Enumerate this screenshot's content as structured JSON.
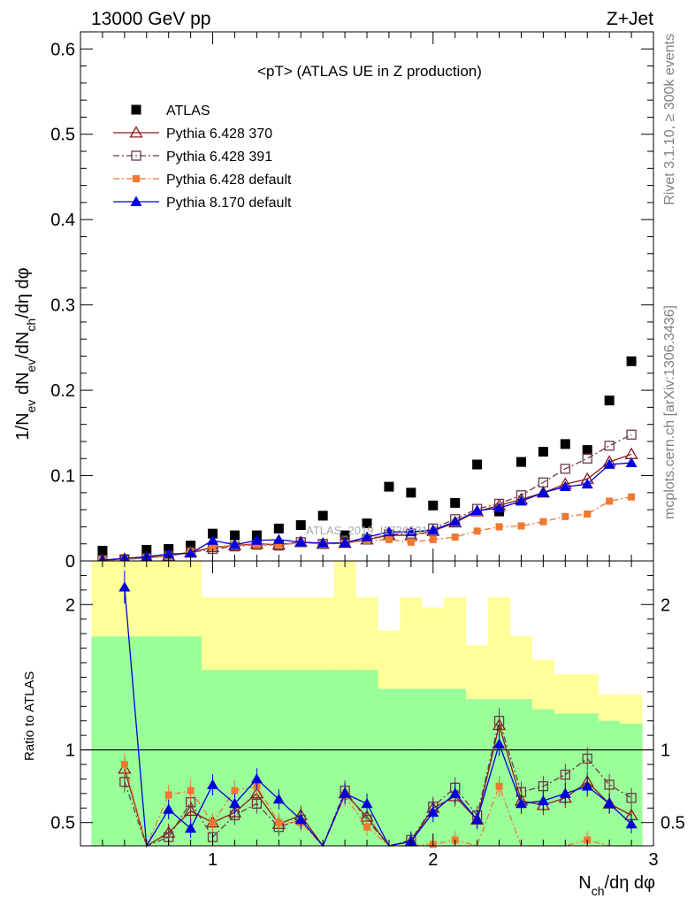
{
  "header": {
    "left": "13000 GeV pp",
    "right": "Z+Jet"
  },
  "side_labels": {
    "rivet": "Rivet 3.1.10, ≥ 300k events",
    "mcplots": "mcplots.cern.ch [arXiv:1306.3436]"
  },
  "watermark": "ATLAS_2019_I1736531",
  "chart_data": {
    "type": "scatter",
    "title": "<pT> (ATLAS UE in Z production)",
    "x": [
      0.5,
      0.6,
      0.7,
      0.8,
      0.9,
      1.0,
      1.1,
      1.2,
      1.3,
      1.4,
      1.5,
      1.6,
      1.7,
      1.8,
      1.9,
      2.0,
      2.1,
      2.2,
      2.3,
      2.4,
      2.5,
      2.6,
      2.7,
      2.8,
      2.9
    ],
    "main": {
      "ylabel": "1/N_ev dN_ev/dN_ch/dη dφ",
      "ylim": [
        0,
        0.62
      ],
      "yticks": [
        0,
        0.1,
        0.2,
        0.3,
        0.4,
        0.5,
        0.6
      ],
      "series": [
        {
          "name": "ATLAS",
          "color": "#000000",
          "marker": "filled-square",
          "line": "none",
          "values": [
            0.012,
            0.002,
            0.013,
            0.014,
            0.018,
            0.032,
            0.03,
            0.03,
            0.038,
            0.042,
            0.053,
            0.03,
            0.044,
            0.087,
            0.08,
            0.065,
            0.068,
            0.113,
            0.058,
            0.116,
            0.128,
            0.137,
            0.13,
            0.188,
            0.234
          ]
        },
        {
          "name": "Pythia 6.428 370",
          "color": "#8b1a1a",
          "marker": "open-triangle",
          "line": "solid",
          "values": [
            0.001,
            0.002,
            0.004,
            0.006,
            0.01,
            0.016,
            0.018,
            0.02,
            0.019,
            0.022,
            0.02,
            0.021,
            0.025,
            0.03,
            0.03,
            0.035,
            0.045,
            0.058,
            0.065,
            0.072,
            0.08,
            0.09,
            0.096,
            0.116,
            0.125
          ]
        },
        {
          "name": "Pythia 6.428 391",
          "color": "#6b3a4a",
          "marker": "open-square",
          "line": "dashdot",
          "values": [
            0.001,
            0.002,
            0.003,
            0.006,
            0.01,
            0.014,
            0.017,
            0.019,
            0.018,
            0.022,
            0.02,
            0.022,
            0.025,
            0.031,
            0.032,
            0.038,
            0.049,
            0.061,
            0.067,
            0.077,
            0.092,
            0.108,
            0.12,
            0.135,
            0.148
          ]
        },
        {
          "name": "Pythia 6.428 default",
          "color": "#f07830",
          "marker": "filled-square-small",
          "line": "dashdot",
          "values": [
            0.001,
            0.002,
            0.004,
            0.006,
            0.011,
            0.016,
            0.018,
            0.019,
            0.019,
            0.021,
            0.02,
            0.021,
            0.024,
            0.025,
            0.022,
            0.025,
            0.028,
            0.035,
            0.04,
            0.041,
            0.046,
            0.052,
            0.055,
            0.07,
            0.075
          ]
        },
        {
          "name": "Pythia 8.170 default",
          "color": "#0000dd",
          "marker": "filled-triangle",
          "line": "solid",
          "values": [
            0.001,
            0.003,
            0.005,
            0.008,
            0.009,
            0.024,
            0.019,
            0.024,
            0.025,
            0.022,
            0.021,
            0.021,
            0.028,
            0.034,
            0.034,
            0.036,
            0.046,
            0.059,
            0.062,
            0.07,
            0.08,
            0.087,
            0.09,
            0.113,
            0.115
          ]
        }
      ]
    },
    "ratio": {
      "ylabel": "Ratio to ATLAS",
      "xlabel": "N_ch/dη dφ",
      "ylim": [
        0.34,
        2.3
      ],
      "yticks": [
        0.5,
        1,
        2
      ],
      "xlim": [
        0.4,
        3.0
      ],
      "xticks": [
        1,
        2,
        3
      ],
      "band_yellow": [
        [
          0.33,
          2.3
        ],
        [
          0.33,
          2.3
        ],
        [
          0.33,
          2.3
        ],
        [
          0.33,
          2.3
        ],
        [
          0.33,
          2.3
        ],
        [
          0.33,
          2.05
        ],
        [
          0.33,
          2.05
        ],
        [
          0.33,
          2.05
        ],
        [
          0.33,
          2.05
        ],
        [
          0.33,
          2.05
        ],
        [
          0.33,
          2.05
        ],
        [
          0.33,
          2.35
        ],
        [
          0.33,
          2.05
        ],
        [
          0.33,
          1.82
        ],
        [
          0.33,
          2.05
        ],
        [
          0.33,
          1.98
        ],
        [
          0.33,
          2.05
        ],
        [
          0.33,
          1.72
        ],
        [
          0.33,
          2.05
        ],
        [
          0.33,
          1.78
        ],
        [
          0.33,
          1.62
        ],
        [
          0.33,
          1.52
        ],
        [
          0.33,
          1.52
        ],
        [
          0.33,
          1.38
        ],
        [
          0.33,
          1.38
        ]
      ],
      "band_green": [
        [
          0.33,
          1.78
        ],
        [
          0.33,
          1.78
        ],
        [
          0.33,
          1.78
        ],
        [
          0.33,
          1.78
        ],
        [
          0.33,
          1.78
        ],
        [
          0.33,
          1.55
        ],
        [
          0.33,
          1.55
        ],
        [
          0.33,
          1.55
        ],
        [
          0.33,
          1.55
        ],
        [
          0.33,
          1.55
        ],
        [
          0.33,
          1.55
        ],
        [
          0.33,
          1.55
        ],
        [
          0.33,
          1.55
        ],
        [
          0.33,
          1.42
        ],
        [
          0.33,
          1.42
        ],
        [
          0.33,
          1.42
        ],
        [
          0.33,
          1.42
        ],
        [
          0.33,
          1.35
        ],
        [
          0.33,
          1.35
        ],
        [
          0.33,
          1.35
        ],
        [
          0.33,
          1.28
        ],
        [
          0.33,
          1.25
        ],
        [
          0.33,
          1.25
        ],
        [
          0.33,
          1.2
        ],
        [
          0.33,
          1.18
        ]
      ],
      "series": [
        {
          "name": "Pythia 6.428 370",
          "color": "#8b1a1a",
          "marker": "open-triangle",
          "line": "solid",
          "values": [
            null,
            0.87,
            0.1,
            0.43,
            0.58,
            0.5,
            0.57,
            0.7,
            0.49,
            0.55,
            0.3,
            0.7,
            0.54,
            0.28,
            0.37,
            0.6,
            0.68,
            0.52,
            1.17,
            0.65,
            0.62,
            0.67,
            0.78,
            0.63,
            0.55
          ]
        },
        {
          "name": "Pythia 6.428 391",
          "color": "#6b3a4a",
          "marker": "open-square",
          "line": "dashdot",
          "values": [
            null,
            0.78,
            0.1,
            0.4,
            0.64,
            0.4,
            0.55,
            0.63,
            0.47,
            0.52,
            0.3,
            0.72,
            0.52,
            0.29,
            0.38,
            0.61,
            0.74,
            0.55,
            1.2,
            0.71,
            0.75,
            0.83,
            0.94,
            0.76,
            0.67
          ]
        },
        {
          "name": "Pythia 6.428 default",
          "color": "#f07830",
          "marker": "filled-square-small",
          "line": "dashdot",
          "values": [
            null,
            0.9,
            0.1,
            0.69,
            0.72,
            0.5,
            0.72,
            0.75,
            0.5,
            0.5,
            0.3,
            0.68,
            0.47,
            0.29,
            0.29,
            0.35,
            0.38,
            0.31,
            0.75,
            0.3,
            0.3,
            0.33,
            0.38,
            0.33,
            0.33
          ]
        },
        {
          "name": "Pythia 8.170 default",
          "color": "#0000dd",
          "marker": "filled-triangle",
          "line": "solid",
          "values": [
            null,
            2.12,
            0.1,
            0.59,
            0.46,
            0.76,
            0.63,
            0.8,
            0.66,
            0.52,
            0.3,
            0.7,
            0.63,
            0.33,
            0.37,
            0.57,
            0.7,
            0.52,
            1.04,
            0.63,
            0.65,
            0.7,
            0.75,
            0.63,
            0.49
          ]
        }
      ]
    }
  }
}
